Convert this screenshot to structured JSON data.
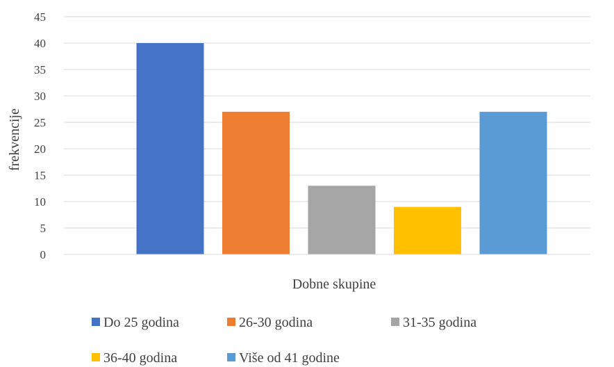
{
  "chart_data": {
    "type": "bar",
    "categories": [
      "Do 25 godina",
      "26-30 godina",
      "31-35 godina",
      "36-40 godina",
      "Više od 41 godine"
    ],
    "values": [
      40,
      27,
      13,
      9,
      27
    ],
    "colors": [
      "#4472c4",
      "#ed7d31",
      "#a5a5a5",
      "#ffc000",
      "#5b9bd5"
    ],
    "xlabel": "Dobne skupine",
    "ylabel": "frekvencije",
    "ylim": [
      0,
      45
    ],
    "yticks": [
      0,
      5,
      10,
      15,
      20,
      25,
      30,
      35,
      40,
      45
    ],
    "grid": true,
    "legend": "bottom"
  }
}
